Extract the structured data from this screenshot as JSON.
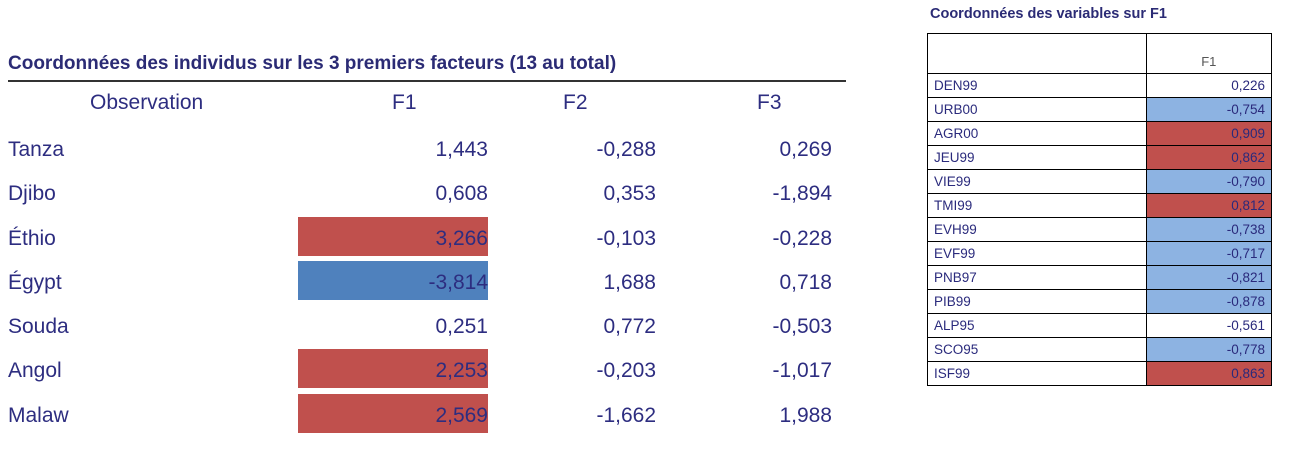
{
  "left_table": {
    "title": "Coordonnées des individus sur les 3 premiers facteurs (13 au total)",
    "headers": [
      "Observation",
      "F1",
      "F2",
      "F3"
    ],
    "highlight_colors": {
      "red": "#c0504d",
      "blue": "#4f81bd"
    },
    "rows": [
      {
        "name": "Tanza",
        "f1": "1,443",
        "f2": "-0,288",
        "f3": "0,269",
        "f1_highlight": "none"
      },
      {
        "name": "Djibo",
        "f1": "0,608",
        "f2": "0,353",
        "f3": "-1,894",
        "f1_highlight": "none"
      },
      {
        "name": "Éthio",
        "f1": "3,266",
        "f2": "-0,103",
        "f3": "-0,228",
        "f1_highlight": "red"
      },
      {
        "name": "Égypt",
        "f1": "-3,814",
        "f2": "1,688",
        "f3": "0,718",
        "f1_highlight": "blue"
      },
      {
        "name": "Souda",
        "f1": "0,251",
        "f2": "0,772",
        "f3": "-0,503",
        "f1_highlight": "none"
      },
      {
        "name": "Angol",
        "f1": "2,253",
        "f2": "-0,203",
        "f3": "-1,017",
        "f1_highlight": "red"
      },
      {
        "name": "Malaw",
        "f1": "2,569",
        "f2": "-1,662",
        "f3": "1,988",
        "f1_highlight": "red"
      }
    ]
  },
  "right_table": {
    "title": "Coordonnées des variables sur F1",
    "header": "F1",
    "highlight_colors": {
      "red": "#c0504d",
      "blue": "#8db3e2"
    },
    "rows": [
      {
        "label": "DEN99",
        "value": "0,226",
        "highlight": "none"
      },
      {
        "label": "URB00",
        "value": "-0,754",
        "highlight": "blue"
      },
      {
        "label": "AGR00",
        "value": "0,909",
        "highlight": "red"
      },
      {
        "label": "JEU99",
        "value": "0,862",
        "highlight": "red"
      },
      {
        "label": "VIE99",
        "value": "-0,790",
        "highlight": "blue"
      },
      {
        "label": "TMI99",
        "value": "0,812",
        "highlight": "red"
      },
      {
        "label": "EVH99",
        "value": "-0,738",
        "highlight": "blue"
      },
      {
        "label": "EVF99",
        "value": "-0,717",
        "highlight": "blue"
      },
      {
        "label": "PNB97",
        "value": "-0,821",
        "highlight": "blue"
      },
      {
        "label": "PIB99",
        "value": "-0,878",
        "highlight": "blue"
      },
      {
        "label": "ALP95",
        "value": "-0,561",
        "highlight": "none"
      },
      {
        "label": "SCO95",
        "value": "-0,778",
        "highlight": "blue"
      },
      {
        "label": "ISF99",
        "value": "0,863",
        "highlight": "red"
      }
    ]
  }
}
